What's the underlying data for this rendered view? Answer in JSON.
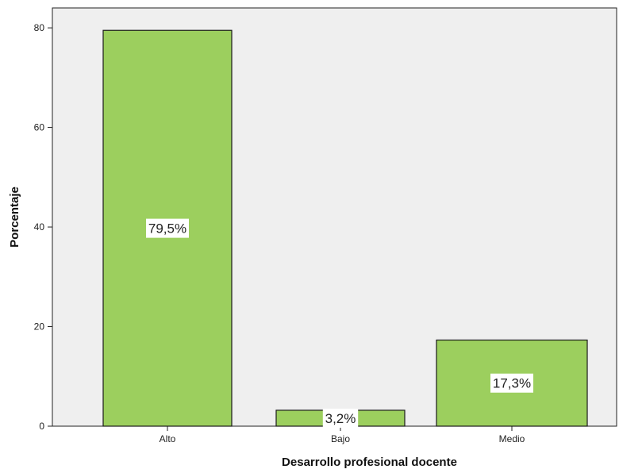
{
  "chart_data": {
    "type": "bar",
    "title": "",
    "xlabel": "Desarrollo profesional docente",
    "ylabel": "Porcentaje",
    "categories": [
      "Alto",
      "Bajo",
      "Medio"
    ],
    "values": [
      79.5,
      3.2,
      17.3
    ],
    "data_labels": [
      "79,5%",
      "3,2%",
      "17,3%"
    ],
    "ylim": [
      0,
      84
    ],
    "yticks": [
      0,
      20,
      40,
      60,
      80
    ],
    "grid": false,
    "colors": {
      "bar_fill": "#9ccf5e",
      "bar_stroke": "#1a1a1a",
      "plot_background": "#efefef"
    }
  }
}
